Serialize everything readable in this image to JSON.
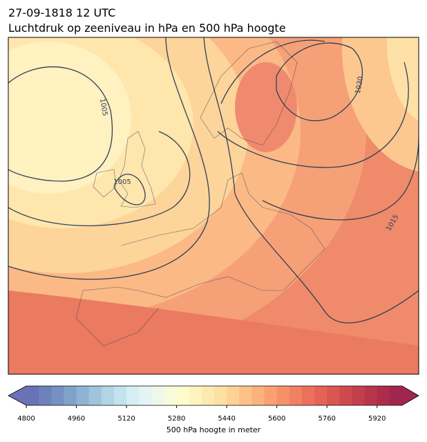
{
  "title": [
    "27-09-1818 12 UTC",
    "Luchtdruk op zeeniveau in hPa en 500 hPa hoogte"
  ],
  "map": {
    "contour_labels": [
      "1005",
      "1005",
      "1030",
      "1015"
    ]
  },
  "colorbar": {
    "label": "500 hPa hoogte in meter",
    "lim": [
      4800,
      6000
    ],
    "ticks": [
      4800,
      4960,
      5120,
      5280,
      5440,
      5600,
      5760,
      5920
    ],
    "colors": [
      "#6a71b5",
      "#6d81bb",
      "#7591c2",
      "#80a2c9",
      "#8fb3d2",
      "#a0c4dc",
      "#b1d4e6",
      "#c3e2ee",
      "#d5eef4",
      "#e3f4f4",
      "#eef8ea",
      "#f7fbd9",
      "#fefccc",
      "#fef4bd",
      "#feeab0",
      "#fee0a2",
      "#fdd294",
      "#fcc287",
      "#fbb27b",
      "#f9a172",
      "#f6906a",
      "#f28062",
      "#ec715c",
      "#e46356",
      "#da5651",
      "#cf4a4e",
      "#c43f4d",
      "#b9354c",
      "#ad2c4c",
      "#a1264d"
    ]
  }
}
